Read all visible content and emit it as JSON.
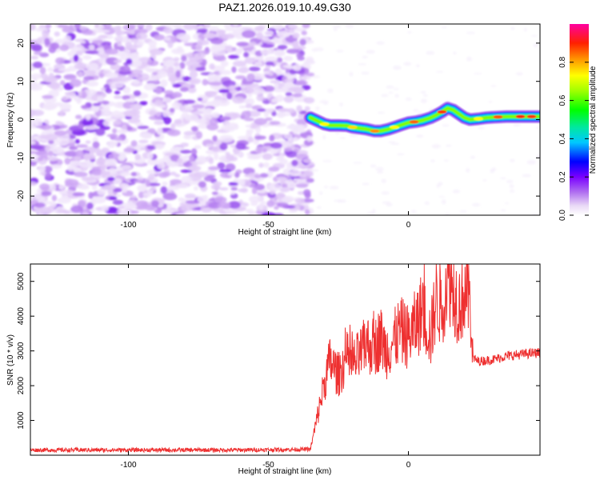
{
  "title": "PAZ1.2026.019.10.49.G30",
  "colors": {
    "snr_line": "#ee3030",
    "axis": "#000000",
    "background": "#ffffff"
  },
  "chart_data": [
    {
      "type": "heatmap",
      "name": "spectrogram",
      "xlabel": "Height of straight line (km)",
      "ylabel": "Frequency (Hz)",
      "xlim": [
        -135,
        47
      ],
      "ylim": [
        -25,
        25
      ],
      "xticks": [
        -100,
        -50,
        0
      ],
      "yticks": [
        20,
        10,
        0,
        -10,
        -20
      ],
      "noise_region_x": [
        -135,
        -35
      ],
      "ridge": {
        "x": [
          -35,
          -32,
          -30,
          -28,
          -25,
          -22,
          -20,
          -17,
          -15,
          -12,
          -10,
          -7,
          -5,
          -3,
          0,
          3,
          5,
          8,
          10,
          12,
          14,
          16,
          18,
          20,
          22,
          25,
          28,
          30,
          35,
          40,
          47
        ],
        "frequency": [
          0.5,
          -0.5,
          -1.2,
          -1.5,
          -1.5,
          -1.6,
          -2.0,
          -2.3,
          -2.5,
          -3.0,
          -3.0,
          -2.5,
          -2.0,
          -1.5,
          -0.8,
          -0.5,
          -0.2,
          0.5,
          1.2,
          2.0,
          3.0,
          2.5,
          1.5,
          0.5,
          0.0,
          0.2,
          0.5,
          0.6,
          0.8,
          0.8,
          0.8
        ]
      },
      "colorbar": {
        "label": "Normalized spectral amplitude",
        "range": [
          0,
          1
        ],
        "ticks": [
          "0.0",
          "0.2",
          "0.4",
          "0.6",
          "0.8"
        ],
        "tick_values": [
          0.0,
          0.2,
          0.4,
          0.6,
          0.8
        ]
      }
    },
    {
      "type": "line",
      "name": "snr",
      "xlabel": "Height of straight line (km)",
      "ylabel": "SNR (10 * v/v)",
      "xlim": [
        -135,
        47
      ],
      "ylim": [
        0,
        5500
      ],
      "xticks": [
        -100,
        -50,
        0
      ],
      "yticks": [
        1000,
        2000,
        3000,
        4000,
        5000
      ],
      "series": [
        {
          "name": "SNR",
          "x": [
            -135,
            -100,
            -60,
            -35,
            -32,
            -30,
            -28,
            -25,
            -22,
            -20,
            -17,
            -15,
            -12,
            -10,
            -8,
            -5,
            -3,
            0,
            3,
            5,
            8,
            10,
            12,
            14,
            16,
            18,
            20,
            22,
            23,
            25,
            30,
            35,
            40,
            47
          ],
          "y": [
            150,
            150,
            150,
            170,
            1300,
            2100,
            2700,
            2300,
            2800,
            2600,
            2900,
            3200,
            3100,
            3400,
            3000,
            3300,
            3600,
            3400,
            3800,
            4200,
            3400,
            4600,
            4200,
            5300,
            4800,
            4300,
            4700,
            4600,
            2800,
            2700,
            2750,
            2850,
            2900,
            2950
          ]
        }
      ]
    }
  ]
}
